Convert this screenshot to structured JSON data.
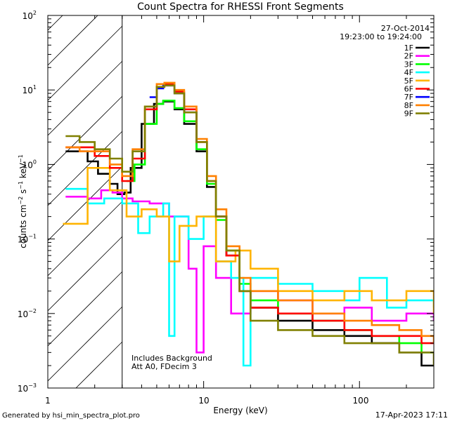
{
  "chart_data": {
    "type": "line",
    "title": "Count Spectra for RHESSI Front Segments",
    "xlabel": "Energy (keV)",
    "ylabel": "counts cm-2 s-1 keV-1",
    "xscale": "log",
    "yscale": "log",
    "xlim": [
      1,
      300
    ],
    "ylim": [
      0.001,
      100
    ],
    "x_ticks": [
      "1",
      "10",
      "100"
    ],
    "y_ticks": [
      "10^-3",
      "10^-2",
      "10^-1",
      "10^0",
      "10^1",
      "10^2"
    ],
    "date": "27-Oct-2014",
    "time_range": "19:23:00 to 19:24:00",
    "annotation_lines": [
      "Includes Background",
      "Att A0, FDecim 3"
    ],
    "hatched_region_kev": [
      1,
      3
    ],
    "legend_position": "top-right",
    "series": [
      {
        "name": "1F",
        "color": "#000000",
        "points": [
          [
            1.3,
            1.5
          ],
          [
            1.55,
            1.5
          ],
          [
            1.8,
            1.1
          ],
          [
            2.1,
            0.75
          ],
          [
            2.5,
            0.55
          ],
          [
            2.8,
            0.4
          ],
          [
            3.1,
            0.42
          ],
          [
            3.4,
            0.9
          ],
          [
            4.0,
            3.5
          ],
          [
            4.8,
            6.5
          ],
          [
            5.5,
            7.0
          ],
          [
            6.5,
            5.5
          ],
          [
            7.5,
            3.5
          ],
          [
            9.0,
            1.5
          ],
          [
            10.5,
            0.5
          ],
          [
            12,
            0.2
          ],
          [
            14,
            0.06
          ],
          [
            17,
            0.02
          ],
          [
            20,
            0.012
          ],
          [
            30,
            0.008
          ],
          [
            50,
            0.006
          ],
          [
            80,
            0.005
          ],
          [
            120,
            0.004
          ],
          [
            180,
            0.003
          ],
          [
            250,
            0.002
          ],
          [
            300,
            0.002
          ]
        ]
      },
      {
        "name": "2F",
        "color": "#ff00ff",
        "points": [
          [
            1.3,
            0.37
          ],
          [
            1.8,
            0.35
          ],
          [
            2.2,
            0.45
          ],
          [
            2.6,
            0.42
          ],
          [
            3.0,
            0.35
          ],
          [
            3.5,
            0.32
          ],
          [
            4.5,
            0.3
          ],
          [
            6,
            0.2
          ],
          [
            8,
            0.04
          ],
          [
            9,
            0.003
          ],
          [
            10,
            0.08
          ],
          [
            12,
            0.03
          ],
          [
            15,
            0.01
          ],
          [
            20,
            0.02
          ],
          [
            30,
            0.015
          ],
          [
            50,
            0.01
          ],
          [
            80,
            0.012
          ],
          [
            120,
            0.008
          ],
          [
            200,
            0.01
          ],
          [
            300,
            0.008
          ]
        ]
      },
      {
        "name": "3F",
        "color": "#00ff00",
        "points": [
          [
            3.2,
            0.6
          ],
          [
            3.6,
            1.0
          ],
          [
            4.2,
            3.5
          ],
          [
            5.0,
            6.5
          ],
          [
            5.5,
            7.2
          ],
          [
            6.5,
            5.7
          ],
          [
            7.5,
            3.8
          ],
          [
            9.0,
            1.6
          ],
          [
            10.5,
            0.55
          ],
          [
            12,
            0.18
          ],
          [
            14,
            0.07
          ],
          [
            17,
            0.025
          ],
          [
            20,
            0.015
          ],
          [
            30,
            0.01
          ],
          [
            50,
            0.008
          ],
          [
            80,
            0.006
          ],
          [
            120,
            0.005
          ],
          [
            180,
            0.004
          ],
          [
            250,
            0.003
          ],
          [
            300,
            0.003
          ]
        ]
      },
      {
        "name": "4F",
        "color": "#00ffff",
        "points": [
          [
            1.3,
            0.47
          ],
          [
            1.8,
            0.3
          ],
          [
            2.3,
            0.35
          ],
          [
            3.0,
            0.3
          ],
          [
            3.8,
            0.12
          ],
          [
            4.5,
            0.2
          ],
          [
            5.5,
            0.3
          ],
          [
            6,
            0.005
          ],
          [
            6.5,
            0.2
          ],
          [
            8,
            0.1
          ],
          [
            10,
            0.2
          ],
          [
            12,
            0.05
          ],
          [
            15,
            0.03
          ],
          [
            18,
            0.002
          ],
          [
            20,
            0.03
          ],
          [
            30,
            0.025
          ],
          [
            50,
            0.02
          ],
          [
            80,
            0.015
          ],
          [
            100,
            0.03
          ],
          [
            150,
            0.012
          ],
          [
            200,
            0.015
          ],
          [
            300,
            0.012
          ]
        ]
      },
      {
        "name": "5F",
        "color": "#ffb400",
        "points": [
          [
            1.25,
            0.16
          ],
          [
            1.8,
            0.9
          ],
          [
            2.5,
            0.45
          ],
          [
            3.2,
            0.2
          ],
          [
            4,
            0.25
          ],
          [
            5,
            0.2
          ],
          [
            6,
            0.05
          ],
          [
            7,
            0.15
          ],
          [
            9,
            0.2
          ],
          [
            12,
            0.05
          ],
          [
            16,
            0.07
          ],
          [
            20,
            0.04
          ],
          [
            30,
            0.02
          ],
          [
            50,
            0.015
          ],
          [
            80,
            0.02
          ],
          [
            120,
            0.015
          ],
          [
            200,
            0.02
          ],
          [
            300,
            0.01
          ]
        ]
      },
      {
        "name": "6F",
        "color": "#ff0000",
        "points": [
          [
            1.3,
            1.7
          ],
          [
            1.6,
            1.7
          ],
          [
            2.0,
            1.3
          ],
          [
            2.5,
            0.9
          ],
          [
            3.0,
            0.6
          ],
          [
            3.5,
            1.2
          ],
          [
            4.2,
            5.5
          ],
          [
            5.0,
            11
          ],
          [
            5.6,
            12
          ],
          [
            6.5,
            9.5
          ],
          [
            7.5,
            5.5
          ],
          [
            9.0,
            2.0
          ],
          [
            10.5,
            0.6
          ],
          [
            12,
            0.2
          ],
          [
            14,
            0.06
          ],
          [
            17,
            0.02
          ],
          [
            20,
            0.012
          ],
          [
            30,
            0.01
          ],
          [
            50,
            0.008
          ],
          [
            80,
            0.006
          ],
          [
            120,
            0.005
          ],
          [
            180,
            0.005
          ],
          [
            250,
            0.004
          ],
          [
            300,
            0.004
          ]
        ]
      },
      {
        "name": "7F",
        "color": "#0000ff",
        "points": [
          [
            4.5,
            8.0
          ],
          [
            5.0,
            10.5
          ],
          [
            5.5,
            11.5
          ],
          [
            6.5,
            9.0
          ],
          [
            7.5,
            5.0
          ],
          [
            9.0,
            2.0
          ]
        ]
      },
      {
        "name": "8F",
        "color": "#ff8000",
        "points": [
          [
            1.3,
            1.7
          ],
          [
            1.6,
            1.5
          ],
          [
            2.0,
            1.5
          ],
          [
            2.5,
            1.0
          ],
          [
            3.0,
            0.7
          ],
          [
            3.5,
            1.6
          ],
          [
            4.2,
            6.0
          ],
          [
            5.0,
            12
          ],
          [
            5.6,
            12.5
          ],
          [
            6.5,
            10
          ],
          [
            7.5,
            6.0
          ],
          [
            9.0,
            2.2
          ],
          [
            10.5,
            0.7
          ],
          [
            12,
            0.25
          ],
          [
            14,
            0.08
          ],
          [
            17,
            0.03
          ],
          [
            20,
            0.02
          ],
          [
            30,
            0.015
          ],
          [
            50,
            0.01
          ],
          [
            80,
            0.008
          ],
          [
            120,
            0.007
          ],
          [
            180,
            0.006
          ],
          [
            250,
            0.005
          ],
          [
            300,
            0.004
          ]
        ]
      },
      {
        "name": "9F",
        "color": "#808000",
        "points": [
          [
            1.3,
            2.4
          ],
          [
            1.6,
            2.0
          ],
          [
            2.0,
            1.6
          ],
          [
            2.5,
            1.2
          ],
          [
            3.0,
            0.8
          ],
          [
            3.5,
            1.5
          ],
          [
            4.2,
            6.0
          ],
          [
            5.0,
            11
          ],
          [
            5.6,
            11.5
          ],
          [
            6.5,
            9.0
          ],
          [
            7.5,
            5.0
          ],
          [
            9.0,
            2.0
          ],
          [
            10.5,
            0.6
          ],
          [
            12,
            0.2
          ],
          [
            14,
            0.07
          ],
          [
            17,
            0.02
          ],
          [
            20,
            0.008
          ],
          [
            30,
            0.006
          ],
          [
            50,
            0.005
          ],
          [
            80,
            0.004
          ],
          [
            120,
            0.004
          ],
          [
            180,
            0.003
          ],
          [
            250,
            0.003
          ],
          [
            300,
            0.002
          ]
        ]
      }
    ]
  },
  "footer": {
    "left": "Generated by hsi_min_spectra_plot.pro",
    "right": "17-Apr-2023 17:11"
  }
}
